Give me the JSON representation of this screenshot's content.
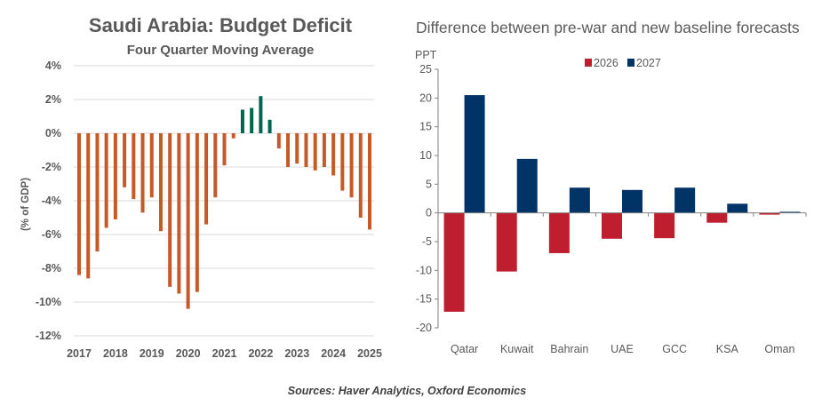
{
  "sources": "Sources: Haver Analytics, Oxford Economics",
  "chart_data": [
    {
      "type": "bar",
      "title": "Saudi Arabia: Budget Deficit",
      "subtitle": "Four Quarter Moving Average",
      "ylabel": "(% of GDP)",
      "xlabel": "",
      "ylim": [
        -12,
        4
      ],
      "yticks": [
        "4%",
        "2%",
        "0%",
        "-2%",
        "-4%",
        "-6%",
        "-8%",
        "-10%",
        "-12%"
      ],
      "ytick_values": [
        4,
        2,
        0,
        -2,
        -4,
        -6,
        -8,
        -10,
        -12
      ],
      "xtick_labels": [
        "2017",
        "2018",
        "2019",
        "2020",
        "2021",
        "2022",
        "2023",
        "2024",
        "2025"
      ],
      "frequency": "quarterly, 2017 Q1 to 2025 Q1",
      "grid": true,
      "colors": {
        "negative": "#C55A28",
        "positive": "#00664F"
      },
      "values": [
        -8.4,
        -8.6,
        -7.0,
        -5.6,
        -5.1,
        -3.2,
        -3.9,
        -4.7,
        -3.8,
        -5.8,
        -9.1,
        -9.5,
        -10.4,
        -9.4,
        -5.4,
        -3.8,
        -1.9,
        -0.3,
        1.4,
        1.5,
        2.2,
        0.8,
        -0.9,
        -2.0,
        -1.8,
        -2.0,
        -2.2,
        -2.0,
        -2.5,
        -3.4,
        -3.8,
        -5.0,
        -5.7
      ]
    },
    {
      "type": "bar",
      "title": "Difference between pre-war and new baseline forecasts",
      "ylabel": "PPT",
      "xlabel": "",
      "ylim": [
        -20,
        25
      ],
      "yticks": [
        "25",
        "20",
        "15",
        "10",
        "5",
        "0",
        "-5",
        "-10",
        "-15",
        "-20"
      ],
      "ytick_values": [
        25,
        20,
        15,
        10,
        5,
        0,
        -5,
        -10,
        -15,
        -20
      ],
      "grid": false,
      "legend": "top-center",
      "categories": [
        "Qatar",
        "Kuwait",
        "Bahrain",
        "UAE",
        "GCC",
        "KSA",
        "Oman"
      ],
      "series": [
        {
          "name": "2026",
          "color": "#BE1E2D",
          "values": [
            -17.2,
            -10.2,
            -7.0,
            -4.5,
            -4.4,
            -1.7,
            -0.3
          ]
        },
        {
          "name": "2027",
          "color": "#003366",
          "values": [
            20.5,
            9.4,
            4.4,
            4.0,
            4.4,
            1.6,
            0.2
          ]
        }
      ]
    }
  ]
}
